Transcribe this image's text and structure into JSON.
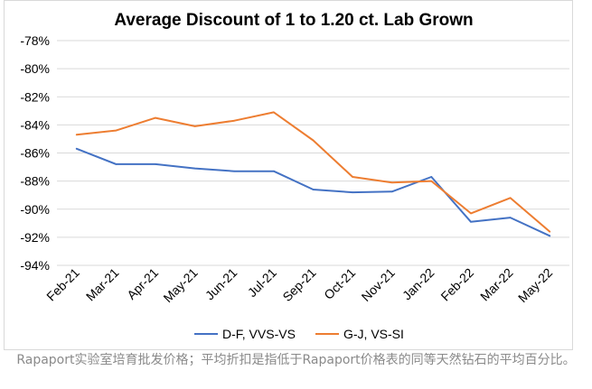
{
  "chart_data": {
    "type": "line",
    "title": "Average Discount of 1 to 1.20 ct. Lab Grown",
    "xlabel": "",
    "ylabel": "",
    "categories": [
      "Feb-21",
      "Mar-21",
      "Apr-21",
      "May-21",
      "Jun-21",
      "Jul-21",
      "Sep-21",
      "Oct-21",
      "Nov-21",
      "Jan-22",
      "Feb-22",
      "Mar-22",
      "May-22"
    ],
    "ylim": [
      -94,
      -78
    ],
    "yticks": [
      -78,
      -80,
      -82,
      -84,
      -86,
      -88,
      -90,
      -92,
      -94
    ],
    "ytick_labels": [
      "-78%",
      "-80%",
      "-82%",
      "-84%",
      "-86%",
      "-88%",
      "-90%",
      "-92%",
      "-94%"
    ],
    "grid": true,
    "legend": "bottom",
    "series": [
      {
        "name": "D-F, VVS-VS",
        "color": "#4472C4",
        "values": [
          -85.7,
          -86.8,
          -86.8,
          -87.1,
          -87.3,
          -87.3,
          -88.6,
          -88.8,
          -88.75,
          -87.7,
          -90.9,
          -90.6,
          -91.9
        ]
      },
      {
        "name": "G-J, VS-SI",
        "color": "#ED7D31",
        "values": [
          -84.7,
          -84.4,
          -83.5,
          -84.1,
          -83.7,
          -83.1,
          -85.1,
          -87.7,
          -88.1,
          -88.0,
          -90.3,
          -89.2,
          -91.6
        ]
      }
    ]
  },
  "caption": "Rapaport实验室培育批发价格；平均折扣是指低于Rapaport价格表的同等天然钻石的平均百分比。"
}
